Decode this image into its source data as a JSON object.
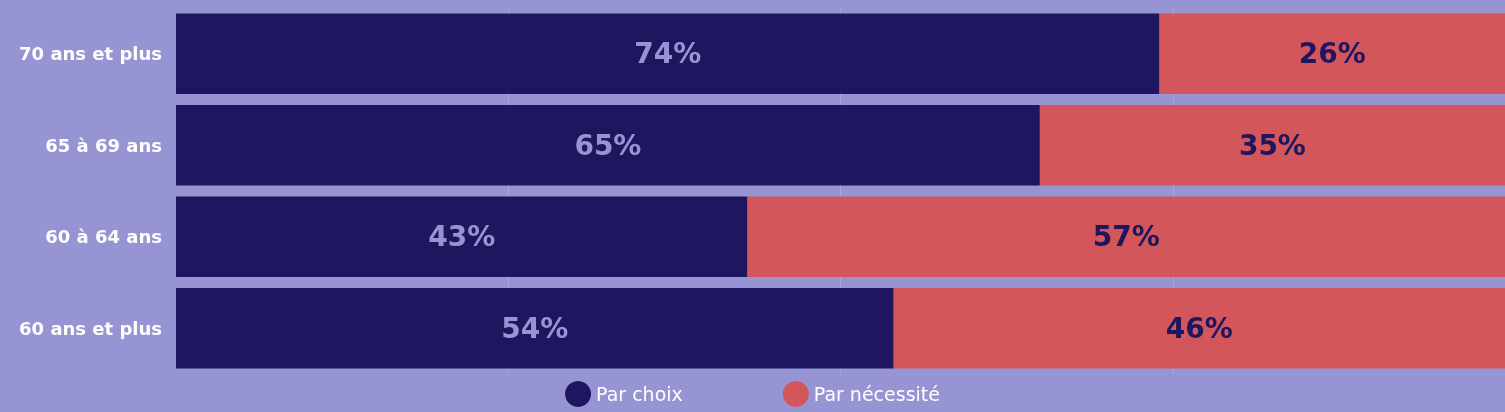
{
  "chart_data": {
    "type": "bar",
    "orientation": "horizontal",
    "stacked": true,
    "categories": [
      "70 ans et plus",
      "65 à 69 ans",
      "60 à 64 ans",
      "60 ans et plus"
    ],
    "series": [
      {
        "name": "Par choix",
        "color": "#1f1660",
        "values": [
          74,
          65,
          43,
          54
        ],
        "value_labels": [
          "74%",
          "65%",
          "43%",
          "54%"
        ]
      },
      {
        "name": "Par nécessité",
        "color": "#d3565a",
        "values": [
          26,
          35,
          57,
          46
        ],
        "value_labels": [
          "26%",
          "35%",
          "57%",
          "46%"
        ]
      }
    ],
    "xlim": [
      0,
      100
    ],
    "xticks": [
      {
        "value": 25,
        "label": null
      },
      {
        "value": 50,
        "label": null
      },
      {
        "value": 75,
        "label": null
      }
    ],
    "tick_labels": "y",
    "grid": "x",
    "legend": "bottom"
  }
}
